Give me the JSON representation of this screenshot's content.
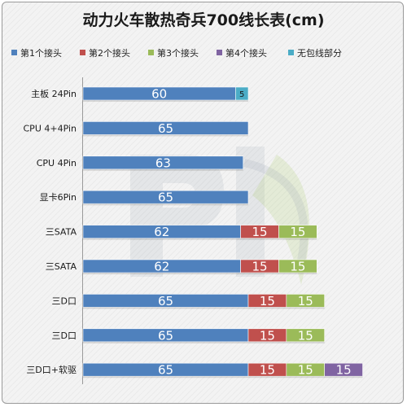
{
  "chart_data": {
    "type": "bar",
    "orientation": "horizontal",
    "stacked": true,
    "title": "动力火车散热奇兵700线长表(cm)",
    "categories": [
      "主板 24Pin",
      "CPU 4+4Pin",
      "CPU 4Pin",
      "显卡6Pin",
      "三SATA",
      "三SATA",
      "三D口",
      "三D口",
      "三D口+软驱"
    ],
    "series": [
      {
        "name": "第1个接头",
        "color": "#4f81bd",
        "values": [
          60,
          65,
          63,
          65,
          62,
          62,
          65,
          65,
          65
        ]
      },
      {
        "name": "第2个接头",
        "color": "#c0504d",
        "values": [
          null,
          null,
          null,
          null,
          15,
          15,
          15,
          15,
          15
        ]
      },
      {
        "name": "第3个接头",
        "color": "#9bbb59",
        "values": [
          null,
          null,
          null,
          null,
          15,
          15,
          15,
          15,
          15
        ]
      },
      {
        "name": "第4个接头",
        "color": "#8064a2",
        "values": [
          null,
          null,
          null,
          null,
          null,
          null,
          null,
          null,
          15
        ]
      },
      {
        "name": "无包线部分",
        "color": "#4bacc6",
        "values": [
          5,
          null,
          null,
          null,
          null,
          null,
          null,
          null,
          null
        ]
      }
    ],
    "xlim": [
      0,
      120
    ],
    "legend_position": "top",
    "data_labels": true,
    "grid": false
  }
}
